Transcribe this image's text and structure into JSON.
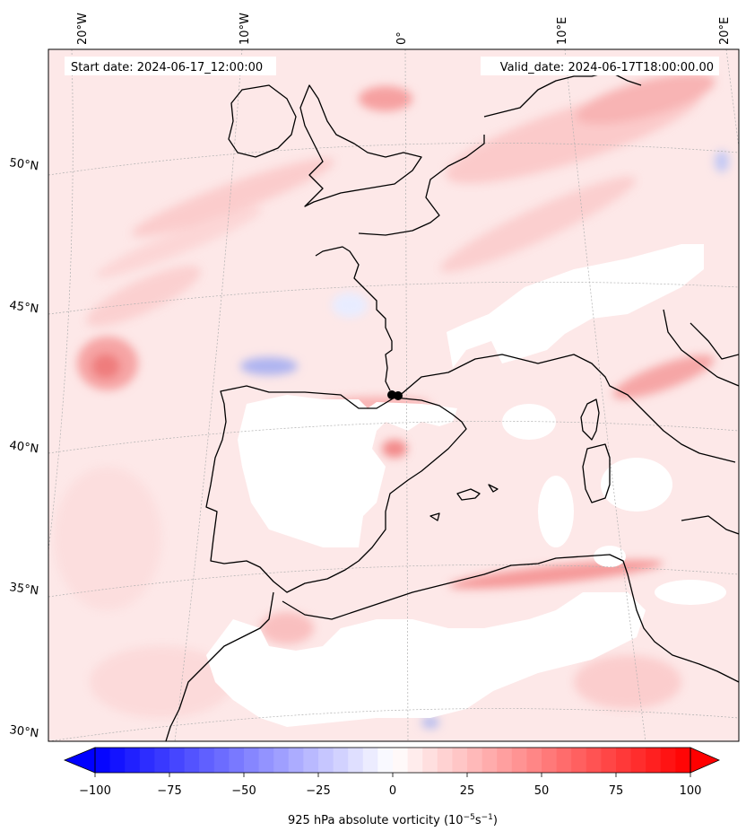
{
  "map": {
    "header": {
      "start_date": "Start date: 2024-06-17_12:00:00",
      "valid_date": "Valid_date: 2024-06-17T18:00:00.00"
    },
    "lon_labels": [
      "20°W",
      "10°W",
      "0°",
      "10°E",
      "20°E"
    ],
    "lat_labels": [
      "50°N",
      "45°N",
      "40°N",
      "35°N",
      "30°N"
    ],
    "colors": {
      "background_field": "#fde9e9",
      "positive_max": "#ff0000",
      "negative_max": "#0000ff",
      "neutral": "#ffffff",
      "coastline": "#000000",
      "gridline": "#b0b0b0"
    }
  },
  "colorbar": {
    "label_prefix": "925 hPa absolute vorticity (10",
    "label_exp1": "−5",
    "label_mid": "s",
    "label_exp2": "−1",
    "label_suffix": ")",
    "vmin": -100,
    "vmax": 100,
    "levels": 40,
    "ticks": [
      "−100",
      "−75",
      "−50",
      "−25",
      "0",
      "25",
      "50",
      "75",
      "100"
    ],
    "extend": "both"
  }
}
